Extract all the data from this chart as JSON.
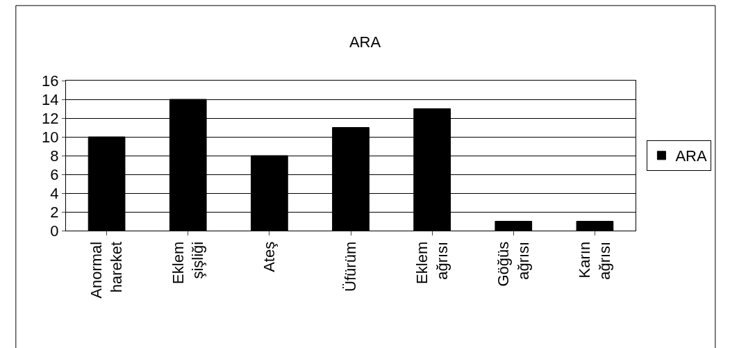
{
  "chart_data": {
    "type": "bar",
    "title": "ARA",
    "categories": [
      "Anormal hareket",
      "Eklem şişliği",
      "Ateş",
      "Üfürüm",
      "Eklem ağrısı",
      "Göğüs ağrısı",
      "Karın ağrısı"
    ],
    "series": [
      {
        "name": "ARA",
        "color": "#000000",
        "values": [
          10,
          14,
          8,
          11,
          13,
          1,
          1
        ]
      }
    ],
    "ylim": [
      0,
      16
    ],
    "yticks": [
      0,
      2,
      4,
      6,
      8,
      10,
      12,
      14,
      16
    ],
    "grid": "y",
    "legend": "right"
  }
}
